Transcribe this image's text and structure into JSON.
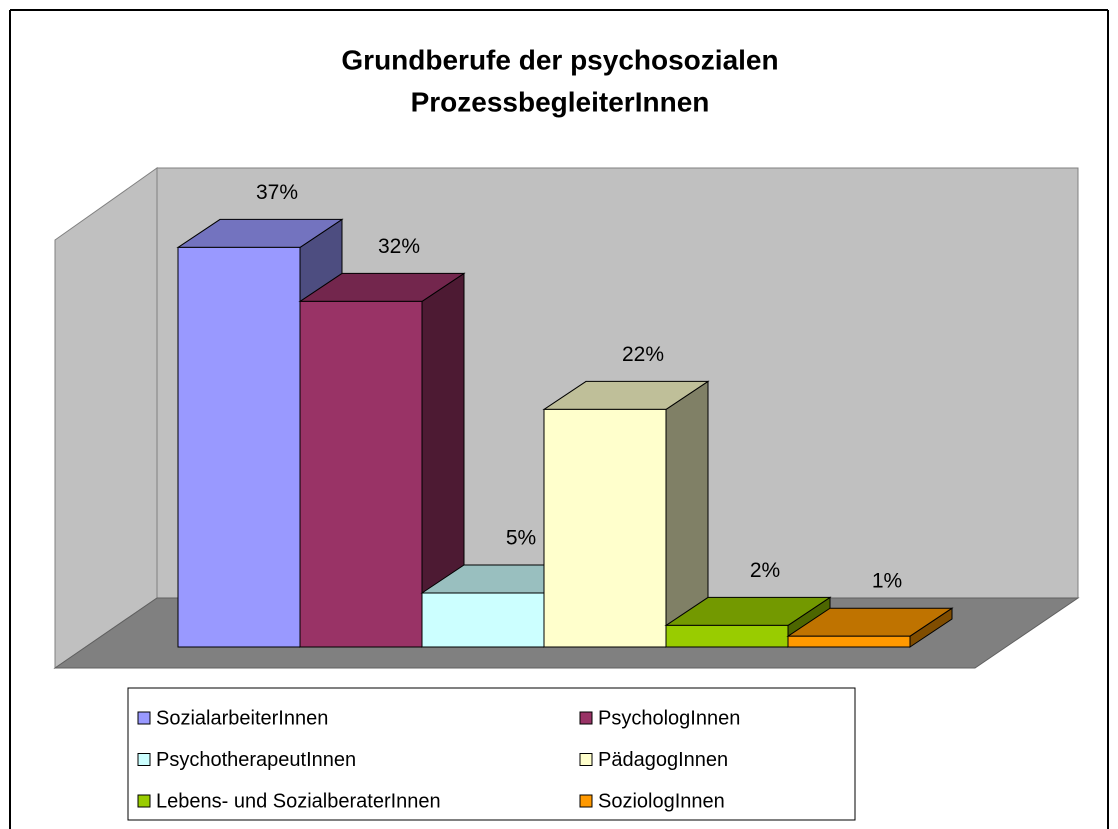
{
  "chart_data": {
    "type": "bar3d",
    "title": [
      "Grundberufe der psychosozialen",
      "ProzessbegleiterInnen"
    ],
    "series": [
      {
        "name": "SozialarbeiterInnen",
        "color": "#9999ff",
        "values": [
          37
        ],
        "value_labels": [
          "37%"
        ]
      },
      {
        "name": "PsychologInnen",
        "color": "#993366",
        "values": [
          32
        ],
        "value_labels": [
          "32%"
        ]
      },
      {
        "name": "PsychotherapeutInnen",
        "color": "#ccffff",
        "values": [
          5
        ],
        "value_labels": [
          "5%"
        ]
      },
      {
        "name": "PädagogInnen",
        "color": "#ffffcc",
        "values": [
          22
        ],
        "value_labels": [
          "22%"
        ]
      },
      {
        "name": "Lebens- und SozialberaterInnen",
        "color": "#99cc00",
        "values": [
          2
        ],
        "value_labels": [
          "2%"
        ]
      },
      {
        "name": "SoziologInnen",
        "color": "#ff9900",
        "values": [
          1
        ],
        "value_labels": [
          "1%"
        ]
      }
    ]
  }
}
